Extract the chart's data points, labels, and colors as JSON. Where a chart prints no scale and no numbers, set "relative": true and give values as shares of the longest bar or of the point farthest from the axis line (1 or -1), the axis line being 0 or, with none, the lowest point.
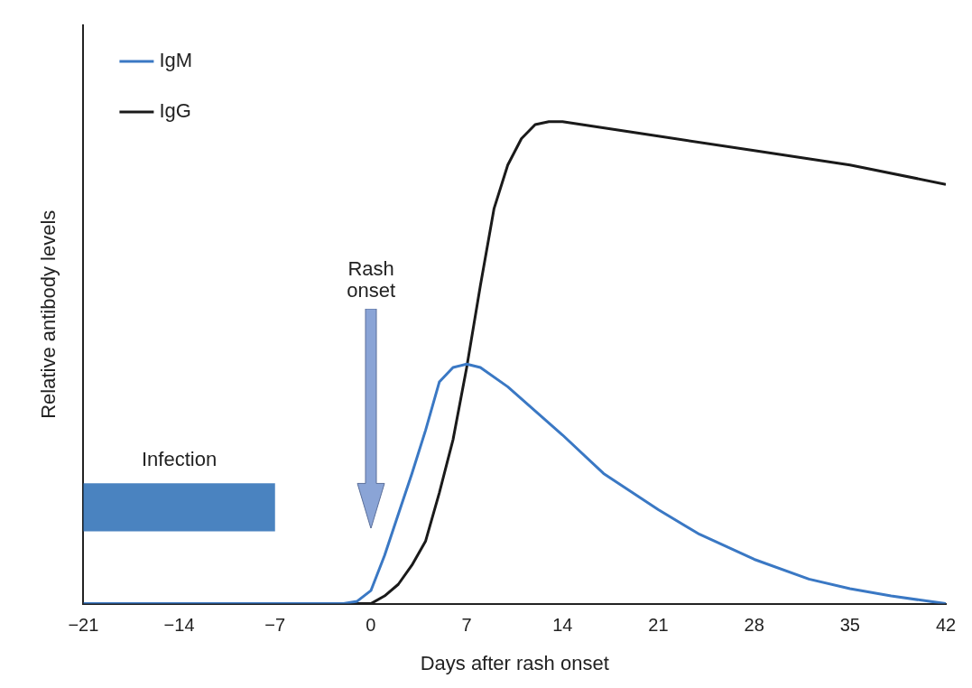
{
  "chart_data": {
    "type": "line",
    "relative": true,
    "xlabel": "Days after rash onset",
    "ylabel": "Relative antibody levels",
    "xlim": [
      -21,
      42
    ],
    "xticks": [
      {
        "value": -21,
        "label": "−21"
      },
      {
        "value": -14,
        "label": "−14"
      },
      {
        "value": -7,
        "label": "−7"
      },
      0,
      7,
      14,
      21,
      28,
      35,
      42
    ],
    "series": [
      {
        "name": "IgM",
        "color": "#3a78c4",
        "x": [
          -21,
          -2,
          -1,
          0,
          1,
          2,
          3,
          4,
          5,
          6,
          7,
          8,
          10,
          12,
          14,
          17,
          21,
          24,
          28,
          32,
          35,
          38,
          42
        ],
        "values": [
          0,
          0,
          0.005,
          0.027,
          0.1,
          0.185,
          0.27,
          0.36,
          0.46,
          0.49,
          0.497,
          0.49,
          0.45,
          0.4,
          0.35,
          0.27,
          0.195,
          0.144,
          0.092,
          0.051,
          0.031,
          0.016,
          0
        ]
      },
      {
        "name": "IgG",
        "color": "#1a1a1a",
        "x": [
          -21,
          0,
          1,
          2,
          3,
          4,
          5,
          6,
          7,
          8,
          9,
          10,
          11,
          12,
          13,
          14,
          21,
          28,
          35,
          42
        ],
        "values": [
          0,
          0,
          0.016,
          0.04,
          0.08,
          0.13,
          0.23,
          0.34,
          0.49,
          0.66,
          0.82,
          0.91,
          0.965,
          0.994,
          1,
          1,
          0.97,
          0.94,
          0.91,
          0.87
        ]
      }
    ],
    "bands": [
      {
        "axis": "x",
        "from": -21,
        "to": -7,
        "label": "Infection",
        "color": "#2a6db5"
      }
    ],
    "annotations": [
      "Rash onset"
    ],
    "legend": "top left",
    "grid": false,
    "marker": "none",
    "line_style": "solid"
  }
}
